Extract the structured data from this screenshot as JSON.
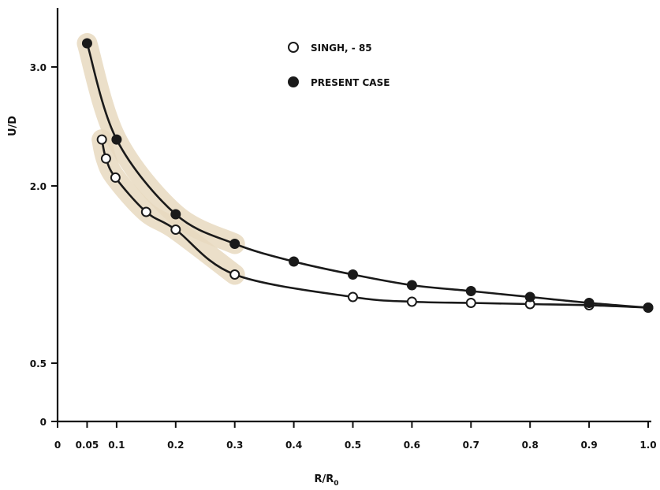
{
  "chart_data": {
    "type": "scatter",
    "xlabel": "R/R",
    "xlabel_sub": "0",
    "ylabel": "U/D",
    "x_ticks": [
      {
        "value": 0,
        "label": "0"
      },
      {
        "value": 0.05,
        "label": "0.05"
      },
      {
        "value": 0.1,
        "label": "0.1"
      },
      {
        "value": 0.2,
        "label": "0.2"
      },
      {
        "value": 0.3,
        "label": "0.3"
      },
      {
        "value": 0.4,
        "label": "0.4"
      },
      {
        "value": 0.5,
        "label": "0.5"
      },
      {
        "value": 0.6,
        "label": "0.6"
      },
      {
        "value": 0.7,
        "label": "0.7"
      },
      {
        "value": 0.8,
        "label": "0.8"
      },
      {
        "value": 0.9,
        "label": "0.9"
      },
      {
        "value": 1.0,
        "label": "1.0"
      }
    ],
    "y_ticks": [
      {
        "value": 0,
        "label": "0"
      },
      {
        "value": 0.5,
        "label": "0.5"
      },
      {
        "value": 2.0,
        "label": "2.0"
      },
      {
        "value": 3.0,
        "label": "3.0"
      }
    ],
    "xlim": [
      0,
      1.0
    ],
    "ylim": [
      0,
      3.5
    ],
    "grid": false,
    "legend_position": "top-center",
    "highlight_color": "#e8d9bf",
    "series": [
      {
        "name": "SINGH, - 85",
        "marker": "open-circle",
        "curve": true,
        "x": [
          0.075,
          0.082,
          0.098,
          0.15,
          0.2,
          0.3,
          0.5,
          0.6,
          0.7,
          0.8,
          0.9,
          1.0
        ],
        "y": [
          2.39,
          2.23,
          2.07,
          1.78,
          1.63,
          1.25,
          1.06,
          1.02,
          1.01,
          1.0,
          0.99,
          0.97
        ]
      },
      {
        "name": "PRESENT CASE",
        "marker": "filled-circle",
        "curve": true,
        "x": [
          0.05,
          0.1,
          0.2,
          0.3,
          0.4,
          0.5,
          0.6,
          0.7,
          0.8,
          0.9,
          1.0
        ],
        "y": [
          3.2,
          2.39,
          1.76,
          1.51,
          1.36,
          1.25,
          1.16,
          1.11,
          1.06,
          1.01,
          0.97
        ]
      }
    ]
  }
}
